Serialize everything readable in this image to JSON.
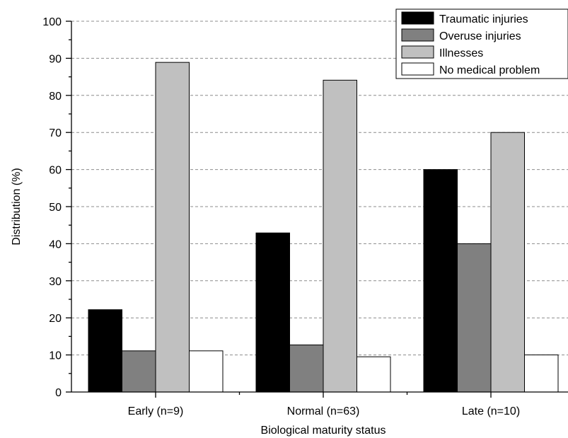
{
  "chart_data": {
    "type": "bar",
    "title": "",
    "xlabel": "Biological maturity status",
    "ylabel": "Distribution (%)",
    "ylim": [
      0,
      100
    ],
    "yticks": [
      "0",
      "10",
      "20",
      "30",
      "40",
      "50",
      "60",
      "70",
      "80",
      "90",
      "100"
    ],
    "grid": true,
    "legend_position": "top-right",
    "categories": [
      "Early (n=9)",
      "Normal (n=63)",
      "Late (n=10)"
    ],
    "series": [
      {
        "name": "Traumatic injuries",
        "color": "#000000",
        "values": [
          22.2,
          42.9,
          60.0
        ]
      },
      {
        "name": "Overuse injuries",
        "color": "#808080",
        "values": [
          11.1,
          12.7,
          40.0
        ]
      },
      {
        "name": "Illnesses",
        "color": "#c0c0c0",
        "values": [
          88.9,
          84.1,
          70.0
        ]
      },
      {
        "name": "No medical problem",
        "color": "#ffffff",
        "values": [
          11.1,
          9.5,
          10.0
        ]
      }
    ]
  }
}
